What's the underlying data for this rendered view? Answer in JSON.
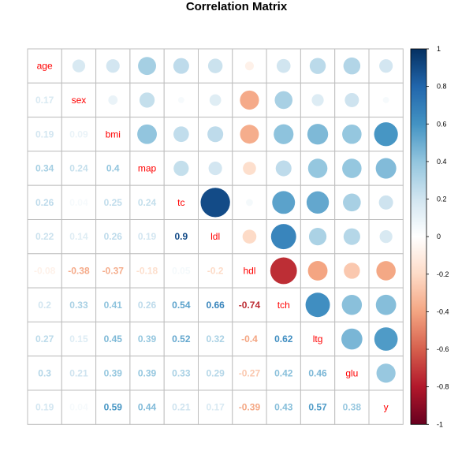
{
  "chart_data": {
    "type": "heatmap",
    "title": "Correlation Matrix",
    "variables": [
      "age",
      "sex",
      "bmi",
      "map",
      "tc",
      "ldl",
      "hdl",
      "tch",
      "ltg",
      "glu",
      "y"
    ],
    "lower_triangle_style": "number",
    "upper_triangle_style": "circle",
    "matrix": [
      [
        1,
        0.17,
        0.19,
        0.34,
        0.26,
        0.22,
        -0.08,
        0.2,
        0.27,
        0.3,
        0.19
      ],
      [
        0.17,
        1,
        0.09,
        0.24,
        0.04,
        0.14,
        -0.38,
        0.33,
        0.15,
        0.21,
        0.04
      ],
      [
        0.19,
        0.09,
        1,
        0.4,
        0.25,
        0.26,
        -0.37,
        0.41,
        0.45,
        0.39,
        0.59
      ],
      [
        0.34,
        0.24,
        0.4,
        1,
        0.24,
        0.19,
        -0.18,
        0.26,
        0.39,
        0.39,
        0.44
      ],
      [
        0.26,
        0.04,
        0.25,
        0.24,
        1,
        0.9,
        0.05,
        0.54,
        0.52,
        0.33,
        0.21
      ],
      [
        0.22,
        0.14,
        0.26,
        0.19,
        0.9,
        1,
        -0.2,
        0.66,
        0.32,
        0.29,
        0.17
      ],
      [
        -0.08,
        -0.38,
        -0.37,
        -0.18,
        0.05,
        -0.2,
        1,
        -0.74,
        -0.4,
        -0.27,
        -0.39
      ],
      [
        0.2,
        0.33,
        0.41,
        0.26,
        0.54,
        0.66,
        -0.74,
        1,
        0.62,
        0.42,
        0.43
      ],
      [
        0.27,
        0.15,
        0.45,
        0.39,
        0.52,
        0.32,
        -0.4,
        0.62,
        1,
        0.46,
        0.57
      ],
      [
        0.3,
        0.21,
        0.39,
        0.39,
        0.33,
        0.29,
        -0.27,
        0.42,
        0.46,
        1,
        0.38
      ],
      [
        0.19,
        0.04,
        0.59,
        0.44,
        0.21,
        0.17,
        -0.39,
        0.43,
        0.57,
        0.38,
        1
      ]
    ],
    "color_scale": {
      "range": [
        -1,
        1
      ],
      "ticks": [
        1,
        0.8,
        0.6,
        0.4,
        0.2,
        0,
        -0.2,
        -0.4,
        -0.6,
        -0.8,
        -1
      ],
      "palette": [
        "#67001F",
        "#B2182B",
        "#D6604D",
        "#F4A582",
        "#FDDBC7",
        "#FFFFFF",
        "#D1E5F0",
        "#92C5DE",
        "#4393C3",
        "#2166AC",
        "#053061"
      ]
    },
    "colors": {
      "variable_label": "#FF0000",
      "grid": "#BEBEBE"
    }
  }
}
